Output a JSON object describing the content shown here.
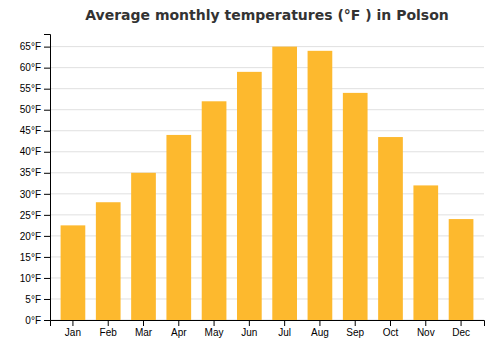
{
  "chart_data": {
    "type": "bar",
    "title": "Average monthly temperatures (°F ) in Polson",
    "categories": [
      "Jan",
      "Feb",
      "Mar",
      "Apr",
      "May",
      "Jun",
      "Jul",
      "Aug",
      "Sep",
      "Oct",
      "Nov",
      "Dec"
    ],
    "values": [
      22.5,
      28.0,
      35.0,
      44.0,
      52.0,
      59.0,
      65.0,
      64.0,
      54.0,
      43.5,
      32.0,
      24.0
    ],
    "color": "#FDB92E",
    "ylim": [
      0,
      68
    ],
    "yticks": [
      {
        "value": 0,
        "label": "0°F"
      },
      {
        "value": 5,
        "label": "5°F"
      },
      {
        "value": 10,
        "label": "10°F"
      },
      {
        "value": 15,
        "label": "15°F"
      },
      {
        "value": 20,
        "label": "20°F"
      },
      {
        "value": 25,
        "label": "25°F"
      },
      {
        "value": 30,
        "label": "30°F"
      },
      {
        "value": 35,
        "label": "35°F"
      },
      {
        "value": 40,
        "label": "40°F"
      },
      {
        "value": 45,
        "label": "45°F"
      },
      {
        "value": 50,
        "label": "50°F"
      },
      {
        "value": 55,
        "label": "55°F"
      },
      {
        "value": 60,
        "label": "60°F"
      },
      {
        "value": 65,
        "label": "65°F"
      }
    ],
    "grid": true
  }
}
